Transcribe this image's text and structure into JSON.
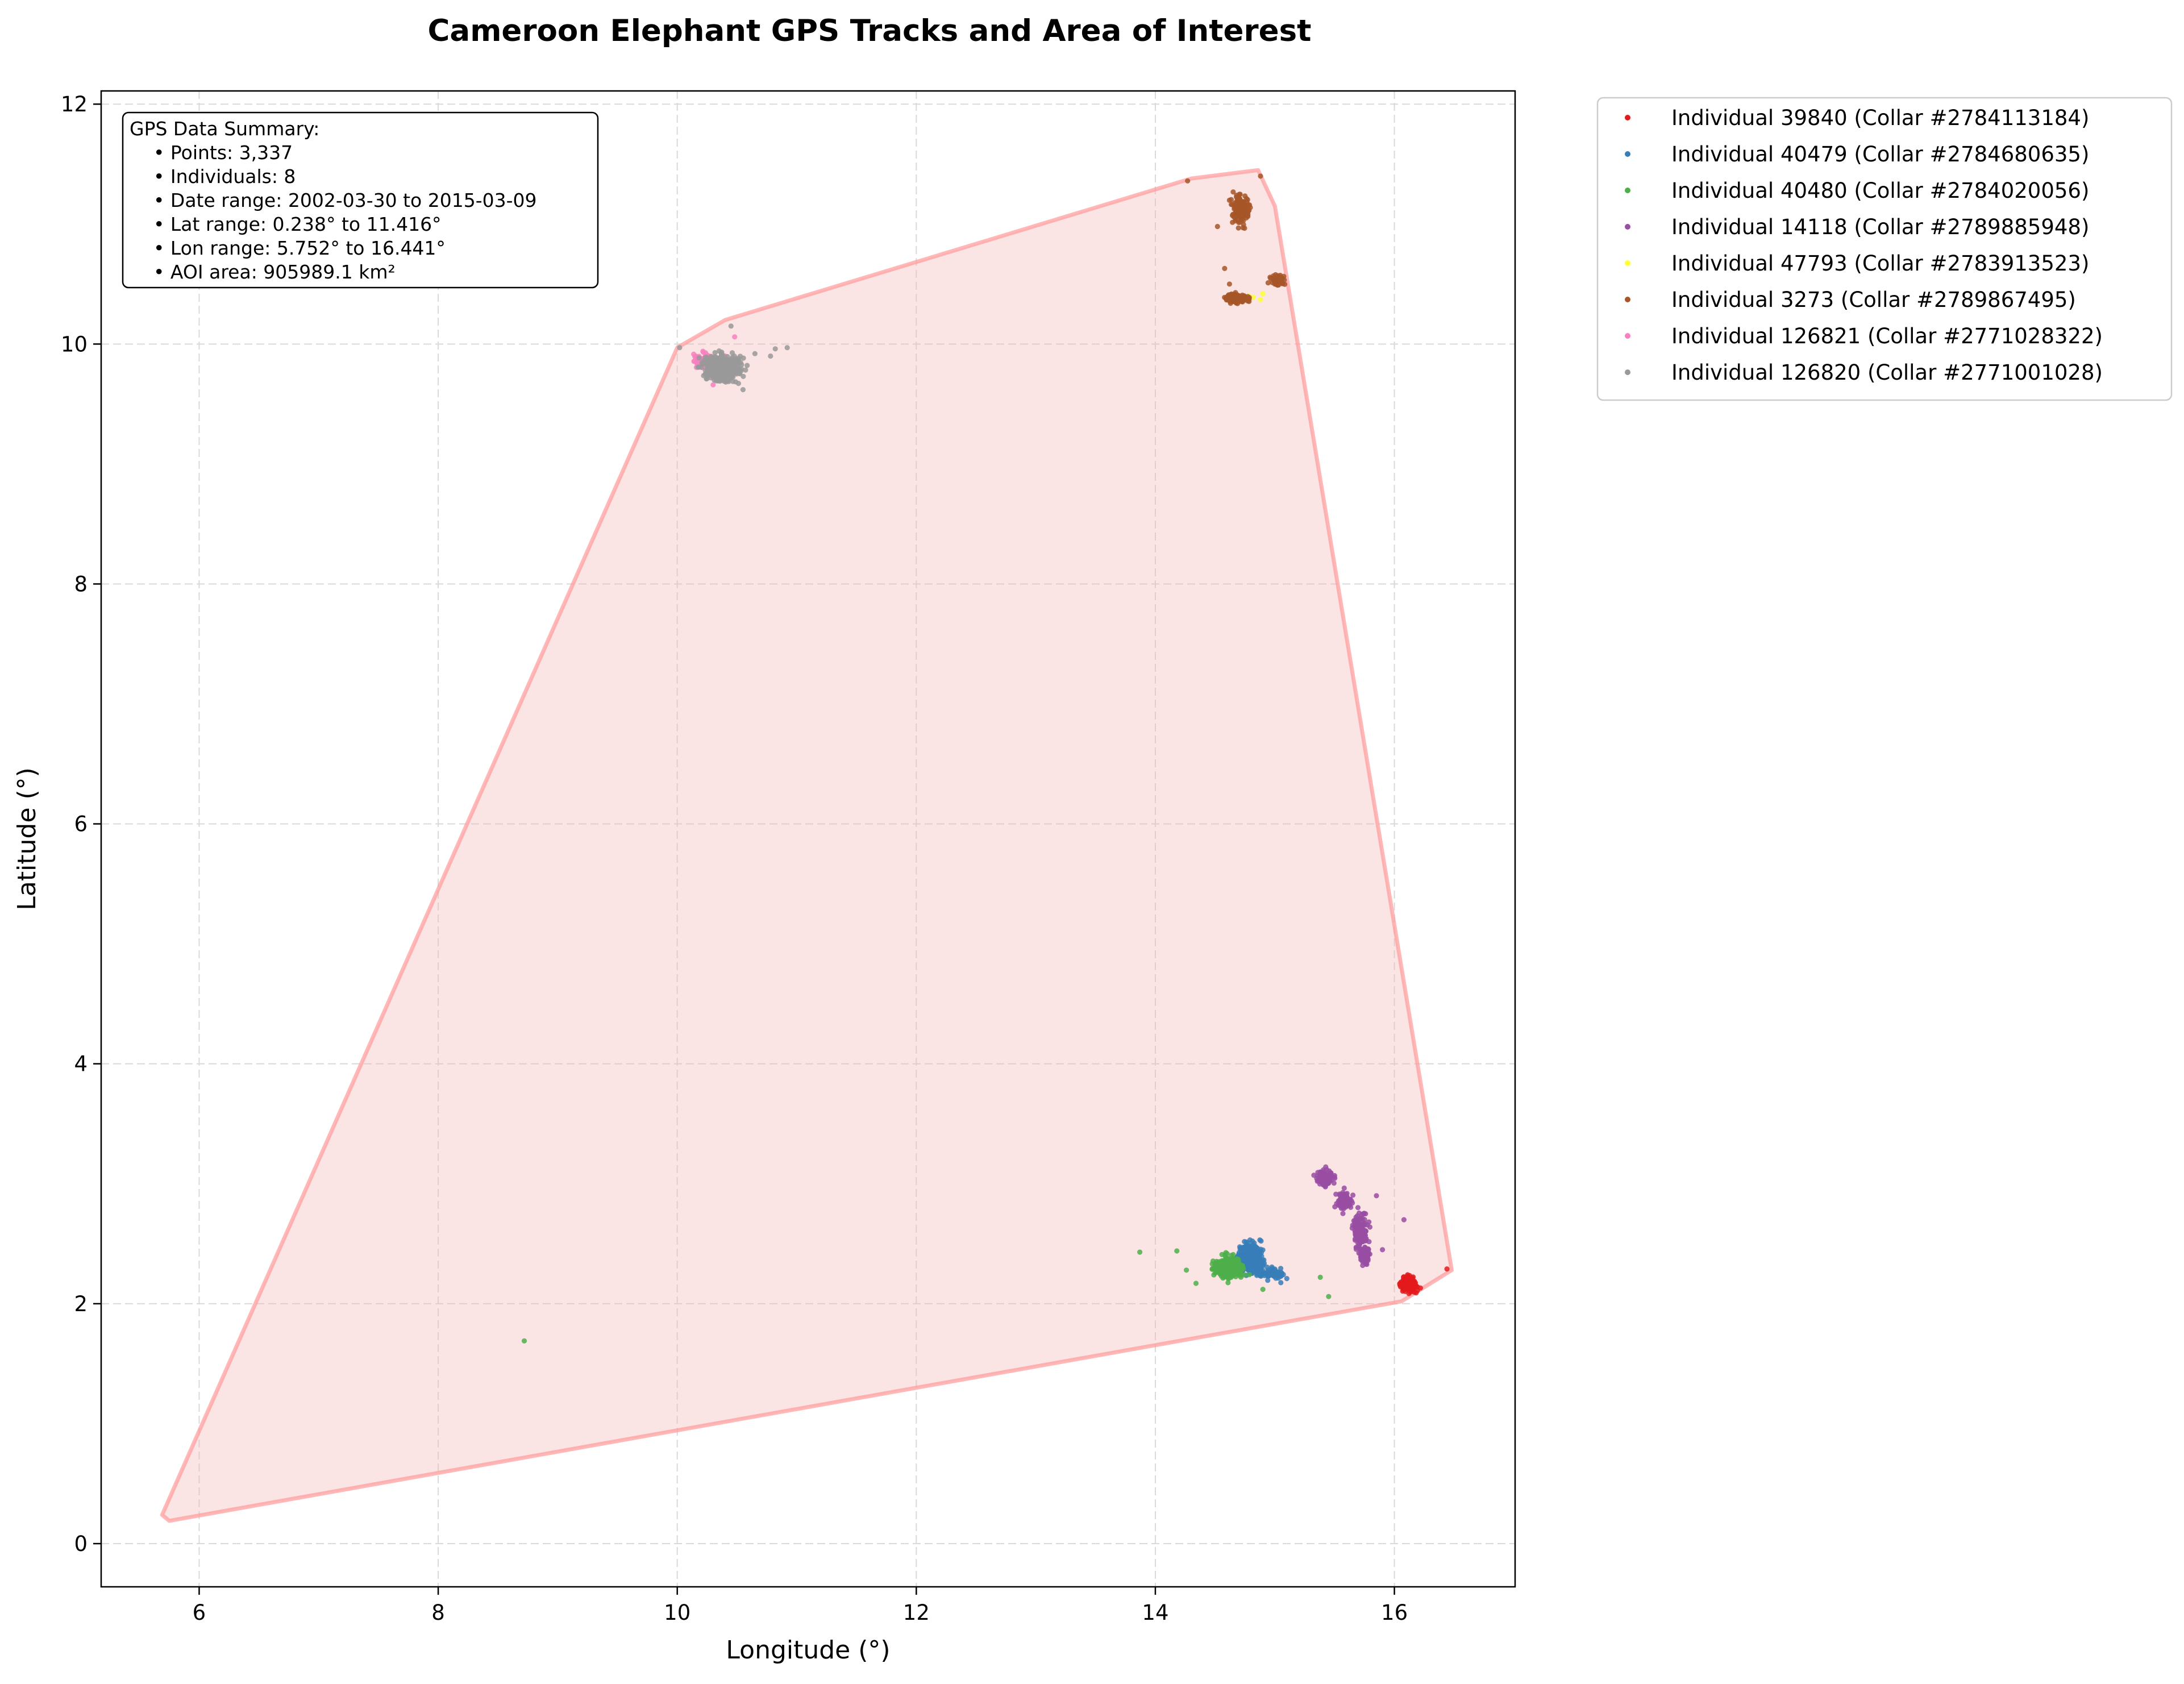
{
  "chart_data": {
    "type": "scatter",
    "title": "Cameroon Elephant GPS Tracks and Area of Interest",
    "xlabel": "Longitude (°)",
    "ylabel": "Latitude (°)",
    "xlim": [
      5.18,
      17.01
    ],
    "ylim": [
      -0.36,
      12.11
    ],
    "xticks": [
      6,
      8,
      10,
      12,
      14,
      16
    ],
    "yticks": [
      0,
      2,
      4,
      6,
      8,
      10,
      12
    ],
    "grid": true,
    "legend_position": "outside-upper-right",
    "summary_box": {
      "lines": [
        "GPS Data Summary:",
        "    • Points: 3,337",
        "    • Individuals: 8",
        "    • Date range: 2002-03-30 to 2015-03-09",
        "    • Lat range: 0.238° to 11.416°",
        "    • Lon range: 5.752° to 16.441°",
        "    • AOI area: 905989.1 km²"
      ]
    },
    "aoi_polygon": {
      "fill": "#f4b9b9",
      "stroke": "#ff9999",
      "points": [
        [
          5.75,
          0.19
        ],
        [
          16.06,
          2.02
        ],
        [
          16.48,
          2.28
        ],
        [
          15.0,
          11.15
        ],
        [
          14.86,
          11.45
        ],
        [
          14.3,
          11.38
        ],
        [
          10.4,
          10.2
        ],
        [
          10.0,
          9.97
        ],
        [
          5.69,
          0.24
        ],
        [
          5.75,
          0.19
        ]
      ]
    },
    "series": [
      {
        "name": "Individual 39840 (Collar #2784113184)",
        "color": "#e41a1c",
        "clusters": [
          {
            "cx": 16.12,
            "cy": 2.16,
            "sx": 0.06,
            "sy": 0.05,
            "n": 160
          }
        ],
        "points": [
          [
            16.44,
            2.29
          ]
        ]
      },
      {
        "name": "Individual 40479 (Collar #2784680635)",
        "color": "#377eb8",
        "clusters": [
          {
            "cx": 14.8,
            "cy": 2.38,
            "sx": 0.09,
            "sy": 0.1,
            "n": 320
          },
          {
            "cx": 14.98,
            "cy": 2.25,
            "sx": 0.08,
            "sy": 0.04,
            "n": 60
          }
        ],
        "points": [
          [
            15.1,
            2.21
          ]
        ]
      },
      {
        "name": "Individual 40480 (Collar #2784020056)",
        "color": "#4daf4a",
        "clusters": [
          {
            "cx": 14.62,
            "cy": 2.3,
            "sx": 0.09,
            "sy": 0.07,
            "n": 380
          }
        ],
        "points": [
          [
            8.72,
            1.69
          ],
          [
            13.87,
            2.43
          ],
          [
            14.18,
            2.44
          ],
          [
            14.26,
            2.28
          ],
          [
            14.34,
            2.17
          ],
          [
            15.38,
            2.22
          ],
          [
            15.45,
            2.06
          ],
          [
            14.9,
            2.12
          ]
        ]
      },
      {
        "name": "Individual 14118 (Collar #2789885948)",
        "color": "#984ea3",
        "clusters": [
          {
            "cx": 15.42,
            "cy": 3.05,
            "sx": 0.06,
            "sy": 0.06,
            "n": 110
          },
          {
            "cx": 15.58,
            "cy": 2.85,
            "sx": 0.05,
            "sy": 0.06,
            "n": 100
          },
          {
            "cx": 15.72,
            "cy": 2.6,
            "sx": 0.05,
            "sy": 0.12,
            "n": 150
          },
          {
            "cx": 15.75,
            "cy": 2.4,
            "sx": 0.04,
            "sy": 0.05,
            "n": 70
          }
        ],
        "points": [
          [
            15.85,
            2.9
          ],
          [
            16.08,
            2.7
          ],
          [
            15.9,
            2.45
          ]
        ]
      },
      {
        "name": "Individual 47793 (Collar #2783913523)",
        "color": "#ffff33",
        "clusters": [],
        "points": [
          [
            14.82,
            10.39
          ],
          [
            14.88,
            10.37
          ],
          [
            14.9,
            10.42
          ],
          [
            14.78,
            10.4
          ]
        ]
      },
      {
        "name": "Individual 3273 (Collar #2789867495)",
        "color": "#a65628",
        "clusters": [
          {
            "cx": 14.72,
            "cy": 11.12,
            "sx": 0.06,
            "sy": 0.1,
            "n": 170
          },
          {
            "cx": 14.68,
            "cy": 10.38,
            "sx": 0.08,
            "sy": 0.03,
            "n": 130
          },
          {
            "cx": 15.02,
            "cy": 10.53,
            "sx": 0.06,
            "sy": 0.04,
            "n": 40
          }
        ],
        "points": [
          [
            14.27,
            11.36
          ],
          [
            14.58,
            10.63
          ],
          [
            14.52,
            10.98
          ],
          [
            14.88,
            11.4
          ],
          [
            14.62,
            10.5
          ]
        ]
      },
      {
        "name": "Individual 126821 (Collar #2771028322)",
        "color": "#f781bf",
        "clusters": [
          {
            "cx": 10.22,
            "cy": 9.87,
            "sx": 0.06,
            "sy": 0.05,
            "n": 90
          }
        ],
        "points": [
          [
            10.48,
            10.06
          ],
          [
            10.4,
            9.9
          ],
          [
            10.3,
            9.66
          ]
        ]
      },
      {
        "name": "Individual 126820 (Collar #2771001028)",
        "color": "#999999",
        "clusters": [
          {
            "cx": 10.38,
            "cy": 9.8,
            "sx": 0.13,
            "sy": 0.09,
            "n": 380
          }
        ],
        "points": [
          [
            10.02,
            9.97
          ],
          [
            10.92,
            9.97
          ],
          [
            10.78,
            9.9
          ],
          [
            10.82,
            9.96
          ],
          [
            10.65,
            9.92
          ],
          [
            10.55,
            9.62
          ],
          [
            10.45,
            10.15
          ]
        ]
      }
    ]
  }
}
